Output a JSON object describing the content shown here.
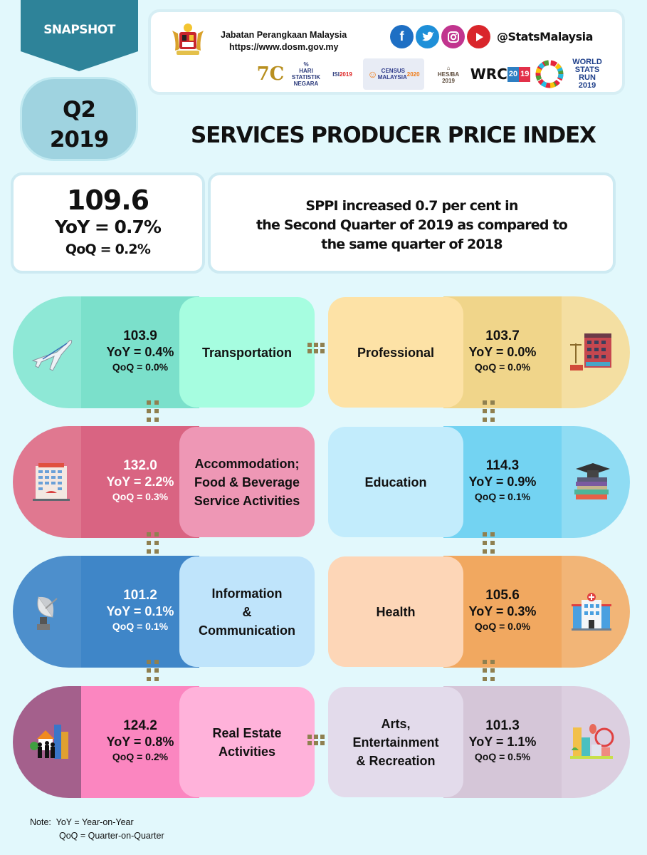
{
  "header": {
    "badge": "SNAPSHOT",
    "quarter": "Q2",
    "year": "2019",
    "org_name": "Jabatan Perangkaan Malaysia",
    "org_url": "https://www.dosm.gov.my",
    "social_handle": "@StatsMalaysia",
    "social_icons": [
      "facebook-icon",
      "twitter-icon",
      "instagram-icon",
      "youtube-icon"
    ],
    "partner_logos": [
      "70 years",
      "Hari Statistik Negara",
      "ISI 2019 Kuala Lumpur",
      "Census Malaysia 2020",
      "HES/BA 2019",
      "WRC 2019",
      "Sustainable Development Goals Malaysia",
      "World Stats Run 2019"
    ],
    "title": "SERVICES PRODUCER PRICE INDEX"
  },
  "summary": {
    "index": "109.6",
    "yoy": "YoY = 0.7%",
    "qoq": "QoQ = 0.2%",
    "lines": [
      "SPPI increased 0.7 per cent in",
      "the Second Quarter of 2019 as compared to",
      "the same quarter of 2018"
    ]
  },
  "sectors": [
    {
      "name": "Transportation",
      "name_lines": [
        "Transportation"
      ],
      "index": "103.9",
      "yoy": "YoY = 0.4%",
      "qoq": "QoQ = 0.0%",
      "icon": "airplane-icon"
    },
    {
      "name": "Professional",
      "name_lines": [
        "Professional"
      ],
      "index": "103.7",
      "yoy": "YoY = 0.0%",
      "qoq": "QoQ = 0.0%",
      "icon": "law-building-icon"
    },
    {
      "name": "Accommodation; Food & Beverage Service Activities",
      "name_lines": [
        "Accommodation;",
        "Food & Beverage",
        "Service Activities"
      ],
      "index": "132.0",
      "yoy": "YoY = 2.2%",
      "qoq": "QoQ = 0.3%",
      "icon": "hotel-icon"
    },
    {
      "name": "Education",
      "name_lines": [
        "Education"
      ],
      "index": "114.3",
      "yoy": "YoY = 0.9%",
      "qoq": "QoQ = 0.1%",
      "icon": "graduation-books-icon"
    },
    {
      "name": "Information & Communication",
      "name_lines": [
        "Information",
        "&",
        "Communication"
      ],
      "index": "101.2",
      "yoy": "YoY = 0.1%",
      "qoq": "QoQ = 0.1%",
      "icon": "satellite-dish-icon"
    },
    {
      "name": "Health",
      "name_lines": [
        "Health"
      ],
      "index": "105.6",
      "yoy": "YoY = 0.3%",
      "qoq": "QoQ = 0.0%",
      "icon": "hospital-icon"
    },
    {
      "name": "Real Estate Activities",
      "name_lines": [
        "Real Estate",
        "Activities"
      ],
      "index": "124.2",
      "yoy": "YoY = 0.8%",
      "qoq": "QoQ = 0.2%",
      "icon": "real-estate-icon"
    },
    {
      "name": "Arts, Entertainment & Recreation",
      "name_lines": [
        "Arts,",
        "Entertainment",
        "& Recreation"
      ],
      "index": "101.3",
      "yoy": "YoY = 1.1%",
      "qoq": "QoQ =  0.5%",
      "icon": "amusement-park-icon"
    }
  ],
  "colors": {
    "ribbon": "#2e8399",
    "badge_bg": "#9fd3e0",
    "dots": "#8f8050",
    "sector_palettes": [
      {
        "end": "#8ee8d6",
        "mid": "#7be0cb",
        "label": "#a6fde0",
        "text": "#111111"
      },
      {
        "end": "#f4dfa2",
        "mid": "#f0d58a",
        "label": "#fde2a6",
        "text": "#111111"
      },
      {
        "end": "#e07890",
        "mid": "#d96482",
        "label": "#ee97b5",
        "text": "#ffffff"
      },
      {
        "end": "#8fdcf3",
        "mid": "#73d3f2",
        "label": "#c2ecfc",
        "text": "#111111"
      },
      {
        "end": "#4d8fcc",
        "mid": "#3f86c8",
        "label": "#bfe4fb",
        "text": "#ffffff"
      },
      {
        "end": "#f2b577",
        "mid": "#f1a860",
        "label": "#fdd6b7",
        "text": "#111111"
      },
      {
        "end": "#a4608c",
        "mid": "#fb86c0",
        "label": "#ffb2da",
        "text": "#111111"
      },
      {
        "end": "#dccfe0",
        "mid": "#d5c6d8",
        "label": "#e3dbeb",
        "text": "#111111"
      }
    ]
  },
  "note": {
    "prefix": "Note:",
    "yoy_def": "YoY  = Year-on-Year",
    "qoq_def": "QoQ = Quarter-on-Quarter"
  }
}
